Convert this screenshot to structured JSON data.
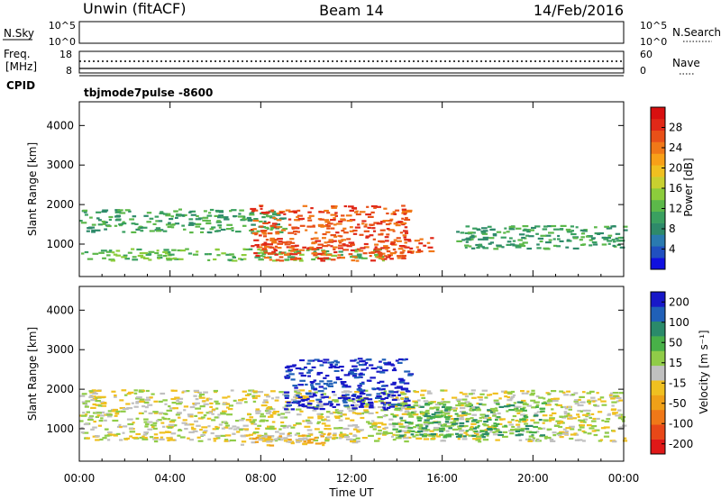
{
  "header": {
    "site": "Unwin (fitACF)",
    "beam": "Beam 14",
    "date": "14/Feb/2016"
  },
  "strips": {
    "nsky_label": "N.Sky",
    "nsky_ticks": [
      "10^5",
      "10^0"
    ],
    "nsearch_label": "N.Search",
    "freq_label_line1": "Freq.",
    "freq_label_line2": "[MHz]",
    "freq_ticks": [
      "18",
      "8"
    ],
    "nave_label": "Nave",
    "nave_ticks": [
      "60",
      "0"
    ],
    "nsky_right_ticks": [
      "10^5",
      "10^0"
    ],
    "cpid_label": "CPID",
    "cpid_value": "tbjmode7pulse  -8600"
  },
  "chart_data": [
    {
      "type": "heatmap",
      "panel": "power",
      "ylabel": "Slant Range [km]",
      "xlabel": "",
      "x_ticks": [
        "00:00",
        "04:00",
        "08:00",
        "12:00",
        "16:00",
        "20:00",
        "00:00"
      ],
      "x_range_hours": [
        0,
        24
      ],
      "ylim": [
        180,
        4600
      ],
      "y_ticks": [
        1000,
        2000,
        3000,
        4000
      ],
      "colorbar": {
        "label": "Power [dB]",
        "ticks": [
          4,
          8,
          12,
          16,
          20,
          24,
          28
        ],
        "range": [
          0,
          32
        ],
        "colors": [
          "#1010e0",
          "#2050c0",
          "#2a7ab0",
          "#2e8a6a",
          "#3aa060",
          "#5cb84a",
          "#8ccc3c",
          "#c8d030",
          "#f0c020",
          "#f8a018",
          "#f07818",
          "#e85018",
          "#e02818",
          "#d81010"
        ]
      },
      "features": [
        {
          "name": "lower band",
          "t_start": 0.0,
          "t_end": 13.5,
          "range_km": [
            600,
            900
          ],
          "level": 12
        },
        {
          "name": "descending band",
          "t_start": 0.0,
          "t_end": 9.0,
          "range_km": [
            1300,
            1900
          ],
          "level": 10
        },
        {
          "name": "strong echoes",
          "t_start": 7.5,
          "t_end": 14.5,
          "range_km": [
            600,
            2000
          ],
          "level": 26
        },
        {
          "name": "patch",
          "t_start": 14.2,
          "t_end": 15.6,
          "range_km": [
            800,
            1200
          ],
          "level": 26
        },
        {
          "name": "late band",
          "t_start": 16.6,
          "t_end": 24.0,
          "range_km": [
            900,
            1500
          ],
          "level": 10
        }
      ]
    },
    {
      "type": "heatmap",
      "panel": "velocity",
      "ylabel": "Slant Range [km]",
      "xlabel": "Time UT",
      "x_ticks": [
        "00:00",
        "04:00",
        "08:00",
        "12:00",
        "16:00",
        "20:00",
        "00:00"
      ],
      "x_range_hours": [
        0,
        24
      ],
      "ylim": [
        180,
        4600
      ],
      "y_ticks": [
        1000,
        2000,
        3000,
        4000
      ],
      "colorbar": {
        "label": "Velocity [m s⁻¹]",
        "tick_labels": [
          "200",
          "100",
          "50",
          "15",
          "-15",
          "-50",
          "-100",
          "-200"
        ],
        "colors": [
          "#1818c8",
          "#2060b8",
          "#2a8a6a",
          "#48b048",
          "#90cc48",
          "#c0c0c0",
          "#f0c020",
          "#f0a018",
          "#f07818",
          "#e84818",
          "#e01818"
        ]
      },
      "features": [
        {
          "name": "ground scatter band",
          "t_start": 0.0,
          "t_end": 24.0,
          "range_km": [
            700,
            2000
          ],
          "velocity": 0
        },
        {
          "name": "approaching echoes",
          "t_start": 9.0,
          "t_end": 14.5,
          "range_km": [
            1500,
            2800
          ],
          "velocity": 150
        },
        {
          "name": "receding echoes",
          "t_start": 7.0,
          "t_end": 12.5,
          "range_km": [
            600,
            900
          ],
          "velocity": -50
        },
        {
          "name": "green patch",
          "t_start": 13.8,
          "t_end": 20.5,
          "range_km": [
            800,
            1700
          ],
          "velocity": 40
        }
      ]
    }
  ]
}
